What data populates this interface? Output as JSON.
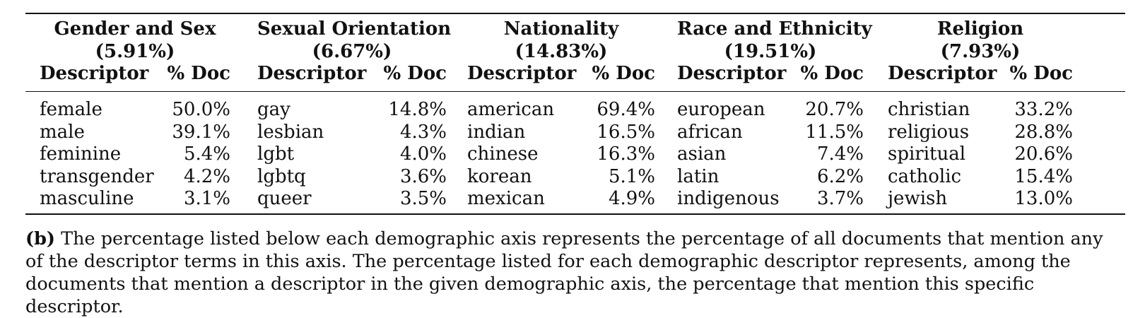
{
  "table": {
    "columns": [
      {
        "axis": "Gender and Sex",
        "axis_pct": "(5.91%)",
        "desc_header": "Descriptor",
        "doc_header": "% Doc",
        "rows": [
          {
            "term": "female",
            "pct": "50.0%"
          },
          {
            "term": "male",
            "pct": "39.1%"
          },
          {
            "term": "feminine",
            "pct": "5.4%"
          },
          {
            "term": "transgender",
            "pct": "4.2%"
          },
          {
            "term": "masculine",
            "pct": "3.1%"
          }
        ]
      },
      {
        "axis": "Sexual Orientation",
        "axis_pct": "(6.67%)",
        "desc_header": "Descriptor",
        "doc_header": "% Doc",
        "rows": [
          {
            "term": "gay",
            "pct": "14.8%"
          },
          {
            "term": "lesbian",
            "pct": "4.3%"
          },
          {
            "term": "lgbt",
            "pct": "4.0%"
          },
          {
            "term": "lgbtq",
            "pct": "3.6%"
          },
          {
            "term": "queer",
            "pct": "3.5%"
          }
        ]
      },
      {
        "axis": "Nationality",
        "axis_pct": "(14.83%)",
        "desc_header": "Descriptor",
        "doc_header": "% Doc",
        "rows": [
          {
            "term": "american",
            "pct": "69.4%"
          },
          {
            "term": "indian",
            "pct": "16.5%"
          },
          {
            "term": "chinese",
            "pct": "16.3%"
          },
          {
            "term": "korean",
            "pct": "5.1%"
          },
          {
            "term": "mexican",
            "pct": "4.9%"
          }
        ]
      },
      {
        "axis": "Race and Ethnicity",
        "axis_pct": "(19.51%)",
        "desc_header": "Descriptor",
        "doc_header": "% Doc",
        "rows": [
          {
            "term": "european",
            "pct": "20.7%"
          },
          {
            "term": "african",
            "pct": "11.5%"
          },
          {
            "term": "asian",
            "pct": "7.4%"
          },
          {
            "term": "latin",
            "pct": "6.2%"
          },
          {
            "term": "indigenous",
            "pct": "3.7%"
          }
        ]
      },
      {
        "axis": "Religion",
        "axis_pct": "(7.93%)",
        "desc_header": "Descriptor",
        "doc_header": "% Doc",
        "rows": [
          {
            "term": "christian",
            "pct": "33.2%"
          },
          {
            "term": "religious",
            "pct": "28.8%"
          },
          {
            "term": "spiritual",
            "pct": "20.6%"
          },
          {
            "term": "catholic",
            "pct": "15.4%"
          },
          {
            "term": "jewish",
            "pct": "13.0%"
          }
        ]
      }
    ]
  },
  "caption": {
    "label": "(b)",
    "text": " The percentage listed below each demographic axis represents the percentage of all documents that mention any of the descriptor terms in this axis. The percentage listed for each demographic descriptor represents, among the documents that mention a descriptor in the given demographic axis, the percentage that mention this specific descriptor."
  }
}
